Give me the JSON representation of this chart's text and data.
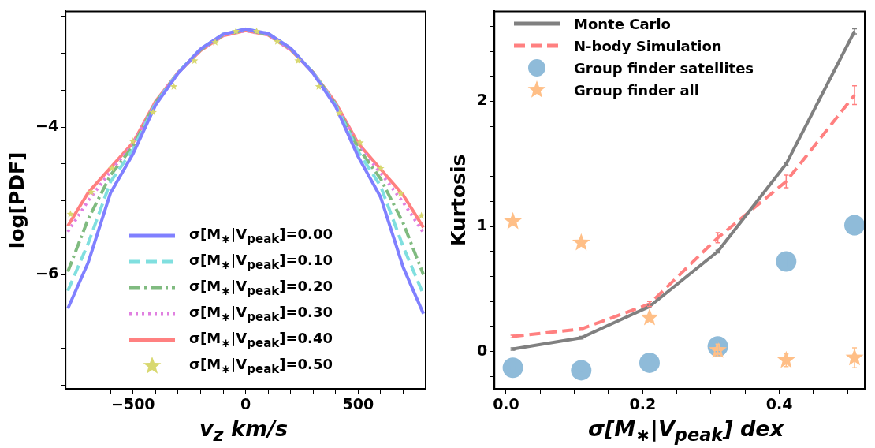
{
  "chart_data": [
    {
      "type": "line",
      "xlabel": "v$_{z}$ km/s",
      "ylabel": "log[PDF]",
      "xlim": [
        -800,
        800
      ],
      "ylim": [
        -7.55,
        -2.43
      ],
      "xticks": [
        {
          "value": -700,
          "label": null
        },
        {
          "value": -600,
          "label": null
        },
        {
          "value": -500,
          "label": "−500"
        },
        {
          "value": -400,
          "label": null
        },
        {
          "value": -300,
          "label": null
        },
        {
          "value": -200,
          "label": null
        },
        {
          "value": -100,
          "label": null
        },
        0,
        {
          "value": 100,
          "label": null
        },
        {
          "value": 200,
          "label": null
        },
        {
          "value": 300,
          "label": null
        },
        {
          "value": 400,
          "label": null
        },
        500,
        {
          "value": 600,
          "label": null
        },
        {
          "value": 700,
          "label": null
        }
      ],
      "yticks": [
        {
          "value": -7.5,
          "label": null
        },
        {
          "value": -7,
          "label": null
        },
        {
          "value": -6.5,
          "label": null
        },
        {
          "value": -6,
          "label": "−6"
        },
        {
          "value": -5.5,
          "label": null
        },
        {
          "value": -5,
          "label": null
        },
        {
          "value": -4.5,
          "label": null
        },
        {
          "value": -4,
          "label": "−4"
        },
        {
          "value": -3.5,
          "label": null
        },
        {
          "value": -3,
          "label": null
        },
        {
          "value": -2.5,
          "label": null
        }
      ],
      "legend": "bottom",
      "x": [
        -790,
        -700,
        -600,
        -500,
        -400,
        -300,
        -200,
        -100,
        0,
        100,
        200,
        300,
        400,
        500,
        600,
        700,
        790
      ],
      "series": [
        {
          "name": "σ[M$_{∗}$|V$_{peak}$]=0.00",
          "color": "#8080ff",
          "line_style": "solid",
          "values": [
            -6.46,
            -5.84,
            -4.89,
            -4.36,
            -3.7,
            -3.27,
            -2.94,
            -2.74,
            -2.67,
            -2.73,
            -2.93,
            -3.27,
            -3.72,
            -4.4,
            -4.95,
            -5.9,
            -6.53
          ]
        },
        {
          "name": "σ[M$_{∗}$|V$_{peak}$]=0.10",
          "color": "#80dfdf",
          "line_style": "dashed",
          "values": [
            -6.22,
            -5.58,
            -4.74,
            -4.3,
            -3.68,
            -3.26,
            -2.94,
            -2.74,
            -2.67,
            -2.73,
            -2.93,
            -3.26,
            -3.7,
            -4.33,
            -4.8,
            -5.62,
            -6.27
          ]
        },
        {
          "name": "σ[M$_{∗}$|V$_{peak}$]=0.20",
          "color": "#80bb80",
          "line_style": "dashdot",
          "values": [
            -5.96,
            -5.25,
            -4.65,
            -4.26,
            -3.67,
            -3.26,
            -2.95,
            -2.75,
            -2.68,
            -2.74,
            -2.94,
            -3.26,
            -3.69,
            -4.28,
            -4.7,
            -5.3,
            -6.0
          ]
        },
        {
          "name": "σ[M$_{∗}$|V$_{peak}$]=0.30",
          "color": "#e080e0",
          "line_style": "dotted",
          "values": [
            -5.42,
            -5.0,
            -4.6,
            -4.23,
            -3.66,
            -3.26,
            -2.96,
            -2.76,
            -2.69,
            -2.75,
            -2.95,
            -3.26,
            -3.68,
            -4.25,
            -4.62,
            -5.02,
            -5.43
          ]
        },
        {
          "name": "σ[M$_{∗}$|V$_{peak}$]=0.40",
          "color": "#ff8080",
          "line_style": "solid",
          "values": [
            -5.34,
            -4.89,
            -4.55,
            -4.21,
            -3.65,
            -3.26,
            -2.96,
            -2.76,
            -2.69,
            -2.75,
            -2.95,
            -3.26,
            -3.67,
            -4.22,
            -4.57,
            -4.92,
            -5.36
          ]
        },
        {
          "name": "σ[M$_{∗}$|V$_{peak}$]=0.50",
          "color": "#d8d870",
          "type": "scatter",
          "marker": "star",
          "x": [
            -778,
            -686,
            -594,
            -502,
            -411,
            -319,
            -227,
            -135,
            -43,
            49,
            141,
            233,
            325,
            417,
            509,
            600,
            689,
            781
          ],
          "values": [
            -5.18,
            -4.88,
            -4.56,
            -4.19,
            -3.8,
            -3.45,
            -3.1,
            -2.85,
            -2.7,
            -2.7,
            -2.84,
            -3.1,
            -3.45,
            -3.81,
            -4.21,
            -4.56,
            -4.9,
            -5.2
          ]
        }
      ]
    },
    {
      "type": "line",
      "xlabel": "σ[M$_{∗}$|V$_{peak}$] dex",
      "ylabel": "Kurtosis",
      "xlim": [
        -0.017,
        0.525
      ],
      "ylim": [
        -0.3,
        2.72
      ],
      "xticks": [
        {
          "value": 0,
          "label": "0.0"
        },
        {
          "value": 0.05,
          "label": null
        },
        {
          "value": 0.1,
          "label": null
        },
        {
          "value": 0.15,
          "label": null
        },
        0.2,
        {
          "value": 0.25,
          "label": null
        },
        {
          "value": 0.3,
          "label": null
        },
        {
          "value": 0.35,
          "label": null
        },
        0.4,
        {
          "value": 0.45,
          "label": null
        },
        {
          "value": 0.5,
          "label": null
        }
      ],
      "yticks": [
        {
          "value": -0.2,
          "label": null
        },
        0,
        {
          "value": 0.2,
          "label": null
        },
        {
          "value": 0.4,
          "label": null
        },
        {
          "value": 0.6,
          "label": null
        },
        {
          "value": 0.8,
          "label": null
        },
        1,
        {
          "value": 1.2,
          "label": null
        },
        {
          "value": 1.4,
          "label": null
        },
        {
          "value": 1.6,
          "label": null
        },
        {
          "value": 1.8,
          "label": null
        },
        2,
        {
          "value": 2.2,
          "label": null
        },
        {
          "value": 2.4,
          "label": null
        },
        {
          "value": 2.6,
          "label": null
        }
      ],
      "legend": "top left",
      "x": [
        0.01,
        0.11,
        0.21,
        0.31,
        0.41,
        0.51
      ],
      "series": [
        {
          "name": "Monte Carlo",
          "color": "#808080",
          "line_style": "solid",
          "values": [
            0.02,
            0.11,
            0.36,
            0.8,
            1.5,
            2.56
          ],
          "errors": [
            0.01,
            0.01,
            0.01,
            0.01,
            0.01,
            0.02
          ]
        },
        {
          "name": "N-body Simulation",
          "color": "#ff8080",
          "line_style": "dashed",
          "values": [
            0.12,
            0.18,
            0.38,
            0.91,
            1.36,
            2.05
          ],
          "errors": [
            0.01,
            0.01,
            0.02,
            0.04,
            0.05,
            0.075
          ]
        },
        {
          "name": "Group finder satellites",
          "color": "#8fbbd9",
          "type": "scatter",
          "marker": "circle",
          "values": [
            -0.13,
            -0.15,
            -0.09,
            0.04,
            0.72,
            1.01
          ],
          "errors": [
            0.01,
            0.01,
            0.01,
            0.04,
            0.05,
            0.075
          ]
        },
        {
          "name": "Group finder all",
          "color": "#ffbf87",
          "type": "scatter",
          "marker": "star",
          "values": [
            1.04,
            0.87,
            0.27,
            0.01,
            -0.07,
            -0.05
          ],
          "errors": [
            0.01,
            0.01,
            0.02,
            0.05,
            0.05,
            0.08
          ]
        }
      ]
    }
  ]
}
